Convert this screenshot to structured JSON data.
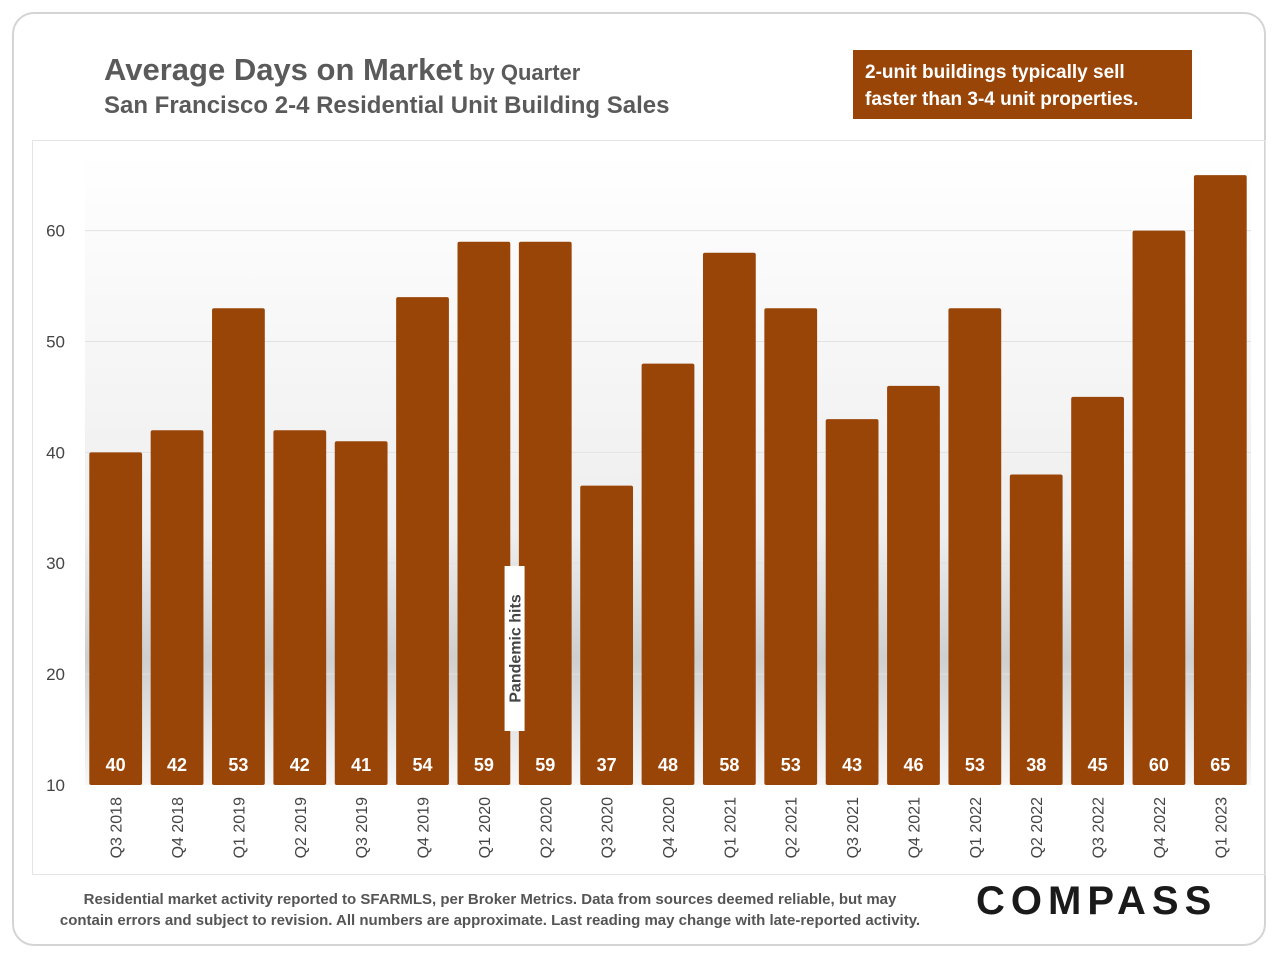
{
  "header": {
    "title_main": "Average Days on Market",
    "title_suffix": " by Quarter",
    "subtitle": "San Francisco 2-4 Residential Unit Building Sales"
  },
  "callout": {
    "line1": "2-unit buildings typically sell",
    "line2": "faster than 3-4 unit properties."
  },
  "footer": {
    "line1": "Residential market activity reported to SFARMLS, per Broker Metrics. Data from sources deemed reliable, but may",
    "line2": "contain errors and subject to revision. All numbers are approximate. Last reading may change with late-reported activity.",
    "logo": "COMPASS"
  },
  "colors": {
    "bar": "#9a4508",
    "bar_label": "#ffffff",
    "axis_text": "#444444"
  },
  "chart_data": {
    "type": "bar",
    "title": "Average Days on Market by Quarter",
    "subtitle": "San Francisco 2-4 Residential Unit Building Sales",
    "categories": [
      "Q3 2018",
      "Q4 2018",
      "Q1 2019",
      "Q2 2019",
      "Q3 2019",
      "Q4 2019",
      "Q1 2020",
      "Q2 2020",
      "Q3 2020",
      "Q4 2020",
      "Q1 2021",
      "Q2 2021",
      "Q3 2021",
      "Q4 2021",
      "Q1 2022",
      "Q2 2022",
      "Q3 2022",
      "Q4 2022",
      "Q1 2023"
    ],
    "values": [
      40,
      42,
      53,
      42,
      41,
      54,
      59,
      59,
      37,
      48,
      58,
      53,
      43,
      46,
      53,
      38,
      45,
      60,
      65
    ],
    "data_labels": [
      "40",
      "42",
      "53",
      "42",
      "41",
      "54",
      "59",
      "59",
      "37",
      "48",
      "58",
      "53",
      "43",
      "46",
      "53",
      "38",
      "45",
      "60",
      "65"
    ],
    "ylim": [
      10,
      67
    ],
    "yticks": [
      10,
      20,
      30,
      40,
      50,
      60
    ],
    "ytick_labels": [
      "10",
      "20",
      "30",
      "40",
      "50",
      "60"
    ],
    "xlabel": "",
    "ylabel": "",
    "annotation": {
      "text": "Pandemic hits",
      "category": "Q2 2020"
    }
  }
}
